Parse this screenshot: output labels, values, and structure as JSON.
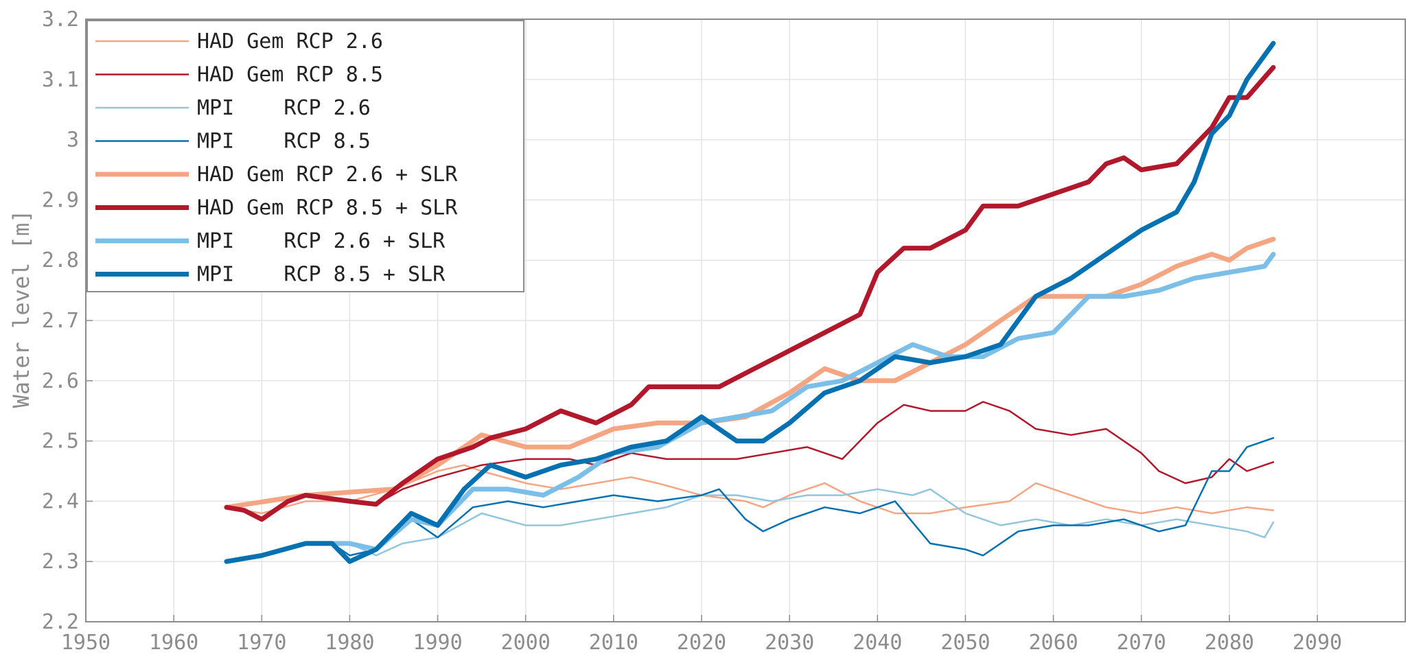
{
  "chart_data": {
    "type": "line",
    "title": "",
    "xlabel": "",
    "ylabel": "Water level [m]",
    "xlim": [
      1950,
      2100
    ],
    "ylim": [
      2.2,
      3.2
    ],
    "grid": true,
    "legend_position": "top-left",
    "x_ticks": [
      "1950",
      "1960",
      "1970",
      "1980",
      "1990",
      "2000",
      "2010",
      "2020",
      "2030",
      "2040",
      "2050",
      "2060",
      "2070",
      "2080",
      "2090"
    ],
    "y_ticks": [
      "2.2",
      "2.3",
      "2.4",
      "2.5",
      "2.6",
      "2.7",
      "2.8",
      "2.9",
      "3",
      "3.1",
      "3.2"
    ],
    "series": [
      {
        "name": "HAD Gem RCP 2.6",
        "color": "#f4a582",
        "style": "thin",
        "points": [
          [
            1966,
            2.39
          ],
          [
            1970,
            2.38
          ],
          [
            1975,
            2.4
          ],
          [
            1980,
            2.4
          ],
          [
            1985,
            2.42
          ],
          [
            1990,
            2.45
          ],
          [
            1993,
            2.46
          ],
          [
            1995,
            2.45
          ],
          [
            2000,
            2.43
          ],
          [
            2004,
            2.42
          ],
          [
            2008,
            2.43
          ],
          [
            2012,
            2.44
          ],
          [
            2015,
            2.43
          ],
          [
            2020,
            2.41
          ],
          [
            2025,
            2.4
          ],
          [
            2027,
            2.39
          ],
          [
            2030,
            2.41
          ],
          [
            2034,
            2.43
          ],
          [
            2038,
            2.4
          ],
          [
            2042,
            2.38
          ],
          [
            2046,
            2.38
          ],
          [
            2050,
            2.39
          ],
          [
            2055,
            2.4
          ],
          [
            2058,
            2.43
          ],
          [
            2062,
            2.41
          ],
          [
            2066,
            2.39
          ],
          [
            2070,
            2.38
          ],
          [
            2074,
            2.39
          ],
          [
            2078,
            2.38
          ],
          [
            2082,
            2.39
          ],
          [
            2085,
            2.385
          ]
        ]
      },
      {
        "name": "HAD Gem RCP 8.5",
        "color": "#b2182b",
        "style": "thin",
        "points": [
          [
            1966,
            2.39
          ],
          [
            1968,
            2.385
          ],
          [
            1970,
            2.37
          ],
          [
            1973,
            2.4
          ],
          [
            1975,
            2.41
          ],
          [
            1980,
            2.4
          ],
          [
            1983,
            2.395
          ],
          [
            1986,
            2.42
          ],
          [
            1990,
            2.44
          ],
          [
            1995,
            2.46
          ],
          [
            2000,
            2.47
          ],
          [
            2005,
            2.47
          ],
          [
            2008,
            2.46
          ],
          [
            2012,
            2.48
          ],
          [
            2016,
            2.47
          ],
          [
            2020,
            2.47
          ],
          [
            2024,
            2.47
          ],
          [
            2028,
            2.48
          ],
          [
            2032,
            2.49
          ],
          [
            2036,
            2.47
          ],
          [
            2040,
            2.53
          ],
          [
            2043,
            2.56
          ],
          [
            2046,
            2.55
          ],
          [
            2050,
            2.55
          ],
          [
            2052,
            2.565
          ],
          [
            2055,
            2.55
          ],
          [
            2058,
            2.52
          ],
          [
            2062,
            2.51
          ],
          [
            2066,
            2.52
          ],
          [
            2070,
            2.48
          ],
          [
            2072,
            2.45
          ],
          [
            2075,
            2.43
          ],
          [
            2078,
            2.44
          ],
          [
            2080,
            2.47
          ],
          [
            2082,
            2.45
          ],
          [
            2085,
            2.465
          ]
        ]
      },
      {
        "name": "MPI    RCP 2.6",
        "color": "#92c5de",
        "style": "thin",
        "points": [
          [
            1966,
            2.3
          ],
          [
            1970,
            2.31
          ],
          [
            1975,
            2.33
          ],
          [
            1980,
            2.33
          ],
          [
            1983,
            2.31
          ],
          [
            1986,
            2.33
          ],
          [
            1990,
            2.34
          ],
          [
            1995,
            2.38
          ],
          [
            2000,
            2.36
          ],
          [
            2004,
            2.36
          ],
          [
            2008,
            2.37
          ],
          [
            2012,
            2.38
          ],
          [
            2016,
            2.39
          ],
          [
            2020,
            2.41
          ],
          [
            2024,
            2.41
          ],
          [
            2028,
            2.4
          ],
          [
            2032,
            2.41
          ],
          [
            2036,
            2.41
          ],
          [
            2040,
            2.42
          ],
          [
            2044,
            2.41
          ],
          [
            2046,
            2.42
          ],
          [
            2050,
            2.38
          ],
          [
            2054,
            2.36
          ],
          [
            2058,
            2.37
          ],
          [
            2062,
            2.36
          ],
          [
            2066,
            2.37
          ],
          [
            2070,
            2.36
          ],
          [
            2074,
            2.37
          ],
          [
            2078,
            2.36
          ],
          [
            2082,
            2.35
          ],
          [
            2084,
            2.34
          ],
          [
            2085,
            2.365
          ]
        ]
      },
      {
        "name": "MPI    RCP 8.5",
        "color": "#0571b0",
        "style": "thin",
        "points": [
          [
            1966,
            2.3
          ],
          [
            1970,
            2.31
          ],
          [
            1975,
            2.33
          ],
          [
            1978,
            2.33
          ],
          [
            1980,
            2.31
          ],
          [
            1983,
            2.32
          ],
          [
            1987,
            2.37
          ],
          [
            1990,
            2.34
          ],
          [
            1994,
            2.39
          ],
          [
            1998,
            2.4
          ],
          [
            2002,
            2.39
          ],
          [
            2006,
            2.4
          ],
          [
            2010,
            2.41
          ],
          [
            2015,
            2.4
          ],
          [
            2020,
            2.41
          ],
          [
            2022,
            2.42
          ],
          [
            2025,
            2.37
          ],
          [
            2027,
            2.35
          ],
          [
            2030,
            2.37
          ],
          [
            2034,
            2.39
          ],
          [
            2038,
            2.38
          ],
          [
            2042,
            2.4
          ],
          [
            2046,
            2.33
          ],
          [
            2050,
            2.32
          ],
          [
            2052,
            2.31
          ],
          [
            2056,
            2.35
          ],
          [
            2060,
            2.36
          ],
          [
            2064,
            2.36
          ],
          [
            2068,
            2.37
          ],
          [
            2072,
            2.35
          ],
          [
            2075,
            2.36
          ],
          [
            2078,
            2.45
          ],
          [
            2080,
            2.45
          ],
          [
            2082,
            2.49
          ],
          [
            2085,
            2.505
          ]
        ]
      },
      {
        "name": "HAD Gem RCP 2.6 + SLR",
        "color": "#f4a582",
        "style": "thick",
        "points": [
          [
            1966,
            2.39
          ],
          [
            1975,
            2.41
          ],
          [
            1985,
            2.42
          ],
          [
            1990,
            2.46
          ],
          [
            1995,
            2.51
          ],
          [
            2000,
            2.49
          ],
          [
            2005,
            2.49
          ],
          [
            2010,
            2.52
          ],
          [
            2015,
            2.53
          ],
          [
            2020,
            2.53
          ],
          [
            2025,
            2.54
          ],
          [
            2030,
            2.58
          ],
          [
            2034,
            2.62
          ],
          [
            2038,
            2.6
          ],
          [
            2042,
            2.6
          ],
          [
            2046,
            2.63
          ],
          [
            2050,
            2.66
          ],
          [
            2054,
            2.7
          ],
          [
            2058,
            2.74
          ],
          [
            2062,
            2.74
          ],
          [
            2066,
            2.74
          ],
          [
            2070,
            2.76
          ],
          [
            2074,
            2.79
          ],
          [
            2078,
            2.81
          ],
          [
            2080,
            2.8
          ],
          [
            2082,
            2.82
          ],
          [
            2085,
            2.835
          ]
        ]
      },
      {
        "name": "HAD Gem RCP 8.5 + SLR",
        "color": "#b2182b",
        "style": "thick",
        "points": [
          [
            1966,
            2.39
          ],
          [
            1968,
            2.385
          ],
          [
            1970,
            2.37
          ],
          [
            1973,
            2.4
          ],
          [
            1975,
            2.41
          ],
          [
            1980,
            2.4
          ],
          [
            1983,
            2.395
          ],
          [
            1986,
            2.43
          ],
          [
            1990,
            2.47
          ],
          [
            1994,
            2.49
          ],
          [
            1996,
            2.505
          ],
          [
            2000,
            2.52
          ],
          [
            2004,
            2.55
          ],
          [
            2008,
            2.53
          ],
          [
            2012,
            2.56
          ],
          [
            2014,
            2.59
          ],
          [
            2018,
            2.59
          ],
          [
            2022,
            2.59
          ],
          [
            2026,
            2.62
          ],
          [
            2030,
            2.65
          ],
          [
            2034,
            2.68
          ],
          [
            2038,
            2.71
          ],
          [
            2040,
            2.78
          ],
          [
            2043,
            2.82
          ],
          [
            2046,
            2.82
          ],
          [
            2050,
            2.85
          ],
          [
            2052,
            2.89
          ],
          [
            2056,
            2.89
          ],
          [
            2060,
            2.91
          ],
          [
            2064,
            2.93
          ],
          [
            2066,
            2.96
          ],
          [
            2068,
            2.97
          ],
          [
            2070,
            2.95
          ],
          [
            2074,
            2.96
          ],
          [
            2076,
            2.99
          ],
          [
            2078,
            3.02
          ],
          [
            2080,
            3.07
          ],
          [
            2082,
            3.07
          ],
          [
            2085,
            3.12
          ]
        ]
      },
      {
        "name": "MPI    RCP 2.6 + SLR",
        "color": "#7bbfe8",
        "style": "thick",
        "points": [
          [
            1966,
            2.3
          ],
          [
            1970,
            2.31
          ],
          [
            1975,
            2.33
          ],
          [
            1980,
            2.33
          ],
          [
            1983,
            2.32
          ],
          [
            1987,
            2.37
          ],
          [
            1990,
            2.36
          ],
          [
            1994,
            2.42
          ],
          [
            1998,
            2.42
          ],
          [
            2002,
            2.41
          ],
          [
            2006,
            2.44
          ],
          [
            2010,
            2.48
          ],
          [
            2015,
            2.49
          ],
          [
            2020,
            2.53
          ],
          [
            2024,
            2.54
          ],
          [
            2028,
            2.55
          ],
          [
            2032,
            2.59
          ],
          [
            2036,
            2.6
          ],
          [
            2040,
            2.63
          ],
          [
            2044,
            2.66
          ],
          [
            2048,
            2.64
          ],
          [
            2052,
            2.64
          ],
          [
            2056,
            2.67
          ],
          [
            2060,
            2.68
          ],
          [
            2064,
            2.74
          ],
          [
            2068,
            2.74
          ],
          [
            2072,
            2.75
          ],
          [
            2076,
            2.77
          ],
          [
            2080,
            2.78
          ],
          [
            2084,
            2.79
          ],
          [
            2085,
            2.81
          ]
        ]
      },
      {
        "name": "MPI    RCP 8.5 + SLR",
        "color": "#0571b0",
        "style": "thick",
        "points": [
          [
            1966,
            2.3
          ],
          [
            1970,
            2.31
          ],
          [
            1975,
            2.33
          ],
          [
            1978,
            2.33
          ],
          [
            1980,
            2.3
          ],
          [
            1983,
            2.32
          ],
          [
            1987,
            2.38
          ],
          [
            1990,
            2.36
          ],
          [
            1993,
            2.42
          ],
          [
            1996,
            2.46
          ],
          [
            2000,
            2.44
          ],
          [
            2004,
            2.46
          ],
          [
            2008,
            2.47
          ],
          [
            2012,
            2.49
          ],
          [
            2016,
            2.5
          ],
          [
            2020,
            2.54
          ],
          [
            2024,
            2.5
          ],
          [
            2027,
            2.5
          ],
          [
            2030,
            2.53
          ],
          [
            2034,
            2.58
          ],
          [
            2038,
            2.6
          ],
          [
            2042,
            2.64
          ],
          [
            2046,
            2.63
          ],
          [
            2050,
            2.64
          ],
          [
            2054,
            2.66
          ],
          [
            2058,
            2.74
          ],
          [
            2062,
            2.77
          ],
          [
            2066,
            2.81
          ],
          [
            2070,
            2.85
          ],
          [
            2074,
            2.88
          ],
          [
            2076,
            2.93
          ],
          [
            2078,
            3.01
          ],
          [
            2080,
            3.04
          ],
          [
            2082,
            3.1
          ],
          [
            2085,
            3.16
          ]
        ]
      }
    ]
  }
}
